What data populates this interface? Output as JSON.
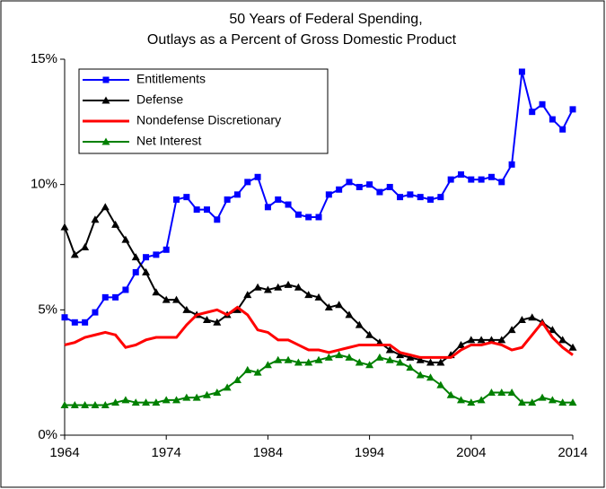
{
  "chart_data": {
    "type": "line",
    "title": "50 Years of Federal Spending,",
    "subtitle": "Outlays as a Percent of Gross Domestic Product",
    "x": [
      1964,
      1965,
      1966,
      1967,
      1968,
      1969,
      1970,
      1971,
      1972,
      1973,
      1974,
      1975,
      1976,
      1977,
      1978,
      1979,
      1980,
      1981,
      1982,
      1983,
      1984,
      1985,
      1986,
      1987,
      1988,
      1989,
      1990,
      1991,
      1992,
      1993,
      1994,
      1995,
      1996,
      1997,
      1998,
      1999,
      2000,
      2001,
      2002,
      2003,
      2004,
      2005,
      2006,
      2007,
      2008,
      2009,
      2010,
      2011,
      2012,
      2013,
      2014
    ],
    "xlim": [
      1964,
      2014
    ],
    "xticks": [
      1964,
      1974,
      1984,
      1994,
      2004,
      2014
    ],
    "ylim": [
      0,
      15
    ],
    "yticks": [
      {
        "value": 0,
        "label": "0%"
      },
      {
        "value": 5,
        "label": "5%"
      },
      {
        "value": 10,
        "label": "10%"
      },
      {
        "value": 15,
        "label": "15%"
      }
    ],
    "grid": false,
    "legend": "upper left",
    "series": [
      {
        "name": "Entitlements",
        "color": "#0000ff",
        "marker": "square",
        "values": [
          4.7,
          4.5,
          4.5,
          4.9,
          5.5,
          5.5,
          5.8,
          6.5,
          7.1,
          7.2,
          7.4,
          9.4,
          9.5,
          9.0,
          9.0,
          8.6,
          9.4,
          9.6,
          10.1,
          10.3,
          9.1,
          9.4,
          9.2,
          8.8,
          8.7,
          8.7,
          9.6,
          9.8,
          10.1,
          9.9,
          10.0,
          9.7,
          9.9,
          9.5,
          9.6,
          9.5,
          9.4,
          9.5,
          10.2,
          10.4,
          10.2,
          10.2,
          10.3,
          10.1,
          10.8,
          14.5,
          12.9,
          13.2,
          12.6,
          12.2,
          13.0
        ]
      },
      {
        "name": "Defense",
        "color": "#000000",
        "marker": "triangle",
        "values": [
          8.3,
          7.2,
          7.5,
          8.6,
          9.1,
          8.4,
          7.8,
          7.1,
          6.5,
          5.7,
          5.4,
          5.4,
          5.0,
          4.8,
          4.6,
          4.5,
          4.8,
          5.0,
          5.6,
          5.9,
          5.8,
          5.9,
          6.0,
          5.9,
          5.6,
          5.5,
          5.1,
          5.2,
          4.8,
          4.4,
          4.0,
          3.7,
          3.4,
          3.2,
          3.1,
          3.0,
          2.9,
          2.9,
          3.2,
          3.6,
          3.8,
          3.8,
          3.8,
          3.8,
          4.2,
          4.6,
          4.7,
          4.5,
          4.2,
          3.8,
          3.5
        ]
      },
      {
        "name": "Nondefense Discretionary",
        "color": "#ff0000",
        "marker": "none",
        "values": [
          3.6,
          3.7,
          3.9,
          4.0,
          4.1,
          4.0,
          3.5,
          3.6,
          3.8,
          3.9,
          3.9,
          3.9,
          4.4,
          4.8,
          4.9,
          5.0,
          4.8,
          5.1,
          4.8,
          4.2,
          4.1,
          3.8,
          3.8,
          3.6,
          3.4,
          3.4,
          3.3,
          3.4,
          3.5,
          3.6,
          3.6,
          3.6,
          3.6,
          3.3,
          3.2,
          3.1,
          3.1,
          3.1,
          3.1,
          3.4,
          3.6,
          3.6,
          3.7,
          3.6,
          3.4,
          3.5,
          4.0,
          4.5,
          3.9,
          3.5,
          3.2
        ]
      },
      {
        "name": "Net Interest",
        "color": "#008000",
        "marker": "triangle",
        "values": [
          1.2,
          1.2,
          1.2,
          1.2,
          1.2,
          1.3,
          1.4,
          1.3,
          1.3,
          1.3,
          1.4,
          1.4,
          1.5,
          1.5,
          1.6,
          1.7,
          1.9,
          2.2,
          2.6,
          2.5,
          2.8,
          3.0,
          3.0,
          2.9,
          2.9,
          3.0,
          3.1,
          3.2,
          3.1,
          2.9,
          2.8,
          3.1,
          3.0,
          2.9,
          2.7,
          2.4,
          2.3,
          2.0,
          1.6,
          1.4,
          1.3,
          1.4,
          1.7,
          1.7,
          1.7,
          1.3,
          1.3,
          1.5,
          1.4,
          1.3,
          1.3
        ]
      }
    ]
  }
}
